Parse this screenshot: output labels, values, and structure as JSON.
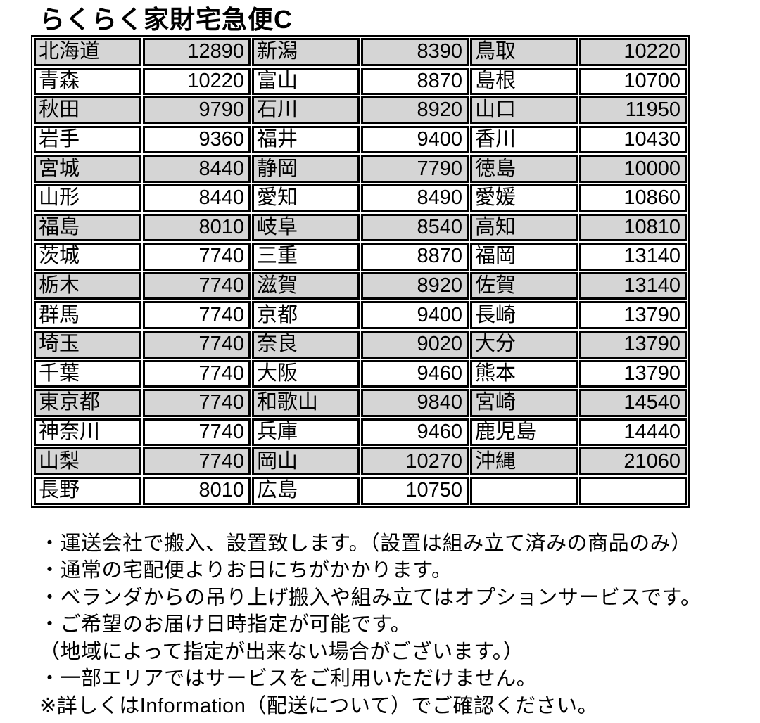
{
  "title": "らくらく家財宅急便C",
  "table": {
    "colors": {
      "shaded_row": "#d5d5d5",
      "plain_row": "#ffffff",
      "border": "#000000"
    },
    "groups": [
      {
        "rows": [
          {
            "name": "北海道",
            "price": "12890"
          },
          {
            "name": "青森",
            "price": "10220"
          },
          {
            "name": "秋田",
            "price": "9790"
          },
          {
            "name": "岩手",
            "price": "9360"
          },
          {
            "name": "宮城",
            "price": "8440"
          },
          {
            "name": "山形",
            "price": "8440"
          },
          {
            "name": "福島",
            "price": "8010"
          },
          {
            "name": "茨城",
            "price": "7740"
          },
          {
            "name": "栃木",
            "price": "7740"
          },
          {
            "name": "群馬",
            "price": "7740"
          },
          {
            "name": "埼玉",
            "price": "7740"
          },
          {
            "name": "千葉",
            "price": "7740"
          },
          {
            "name": "東京都",
            "price": "7740"
          },
          {
            "name": "神奈川",
            "price": "7740"
          },
          {
            "name": "山梨",
            "price": "7740"
          },
          {
            "name": "長野",
            "price": "8010"
          }
        ]
      },
      {
        "rows": [
          {
            "name": "新潟",
            "price": "8390"
          },
          {
            "name": "富山",
            "price": "8870"
          },
          {
            "name": "石川",
            "price": "8920"
          },
          {
            "name": "福井",
            "price": "9400"
          },
          {
            "name": "静岡",
            "price": "7790"
          },
          {
            "name": "愛知",
            "price": "8490"
          },
          {
            "name": "岐阜",
            "price": "8540"
          },
          {
            "name": "三重",
            "price": "8870"
          },
          {
            "name": "滋賀",
            "price": "8920"
          },
          {
            "name": "京都",
            "price": "9400"
          },
          {
            "name": "奈良",
            "price": "9020"
          },
          {
            "name": "大阪",
            "price": "9460"
          },
          {
            "name": "和歌山",
            "price": "9840"
          },
          {
            "name": "兵庫",
            "price": "9460"
          },
          {
            "name": "岡山",
            "price": "10270"
          },
          {
            "name": "広島",
            "price": "10750"
          }
        ]
      },
      {
        "rows": [
          {
            "name": "鳥取",
            "price": "10220"
          },
          {
            "name": "島根",
            "price": "10700"
          },
          {
            "name": "山口",
            "price": "11950"
          },
          {
            "name": "香川",
            "price": "10430"
          },
          {
            "name": "徳島",
            "price": "10000"
          },
          {
            "name": "愛媛",
            "price": "10860"
          },
          {
            "name": "高知",
            "price": "10810"
          },
          {
            "name": "福岡",
            "price": "13140"
          },
          {
            "name": "佐賀",
            "price": "13140"
          },
          {
            "name": "長崎",
            "price": "13790"
          },
          {
            "name": "大分",
            "price": "13790"
          },
          {
            "name": "熊本",
            "price": "13790"
          },
          {
            "name": "宮崎",
            "price": "14540"
          },
          {
            "name": "鹿児島",
            "price": "14440"
          },
          {
            "name": "沖縄",
            "price": "21060"
          }
        ]
      }
    ]
  },
  "notes": [
    "・運送会社で搬入、設置致します。（設置は組み立て済みの商品のみ）",
    "・通常の宅配便よりお日にちがかかります。",
    "・ベランダからの吊り上げ搬入や組み立てはオプションサービスです。",
    "・ご希望のお届け日時指定が可能です。",
    "（地域によって指定が出来ない場合がございます。）",
    "・一部エリアではサービスをご利用いただけません。",
    "※詳しくはInformation（配送について）でご確認ください。"
  ]
}
